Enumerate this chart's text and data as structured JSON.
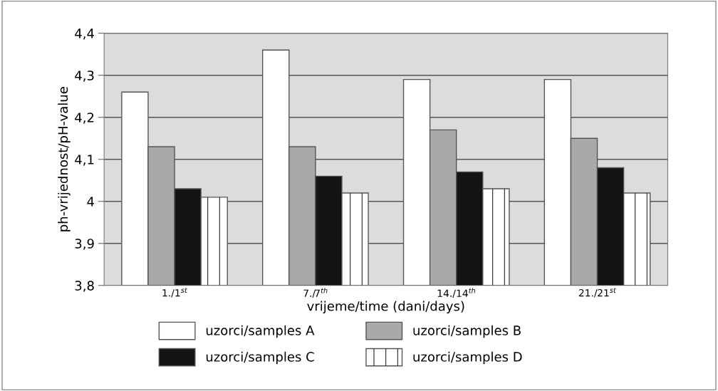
{
  "chart_data": {
    "type": "bar",
    "xlabel": "vrijeme/time (dani/days)",
    "ylabel": "ph-vrijednost/pH-value",
    "categories": [
      "1./1$^{st}$",
      "7./7$^{th}$",
      "14./14$^{th}$",
      "21./21$^{st}$"
    ],
    "series": [
      {
        "name": "uzorci/samples A",
        "color": "#ffffff",
        "values": [
          4.26,
          4.36,
          4.29,
          4.29
        ]
      },
      {
        "name": "uzorci/samples B",
        "color": "#a9a9a9",
        "values": [
          4.13,
          4.13,
          4.17,
          4.15
        ]
      },
      {
        "name": "uzorci/samples C",
        "color": "#141414",
        "values": [
          4.03,
          4.06,
          4.07,
          4.08
        ]
      },
      {
        "name": "uzorci/samples D",
        "color": "#ffffff",
        "values": [
          4.01,
          4.02,
          4.03,
          4.02
        ]
      }
    ],
    "ylim": [
      3.8,
      4.4
    ],
    "yticks": [
      {
        "value": 3.8,
        "label": "3,8"
      },
      {
        "value": 3.9,
        "label": "3,9"
      },
      4,
      {
        "value": 4.1,
        "label": "4,1"
      },
      {
        "value": 4.2,
        "label": "4,2"
      },
      {
        "value": 4.3,
        "label": "4,3"
      },
      {
        "value": 4.4,
        "label": "4,4"
      }
    ],
    "grid": "y",
    "legend": "bottom"
  }
}
